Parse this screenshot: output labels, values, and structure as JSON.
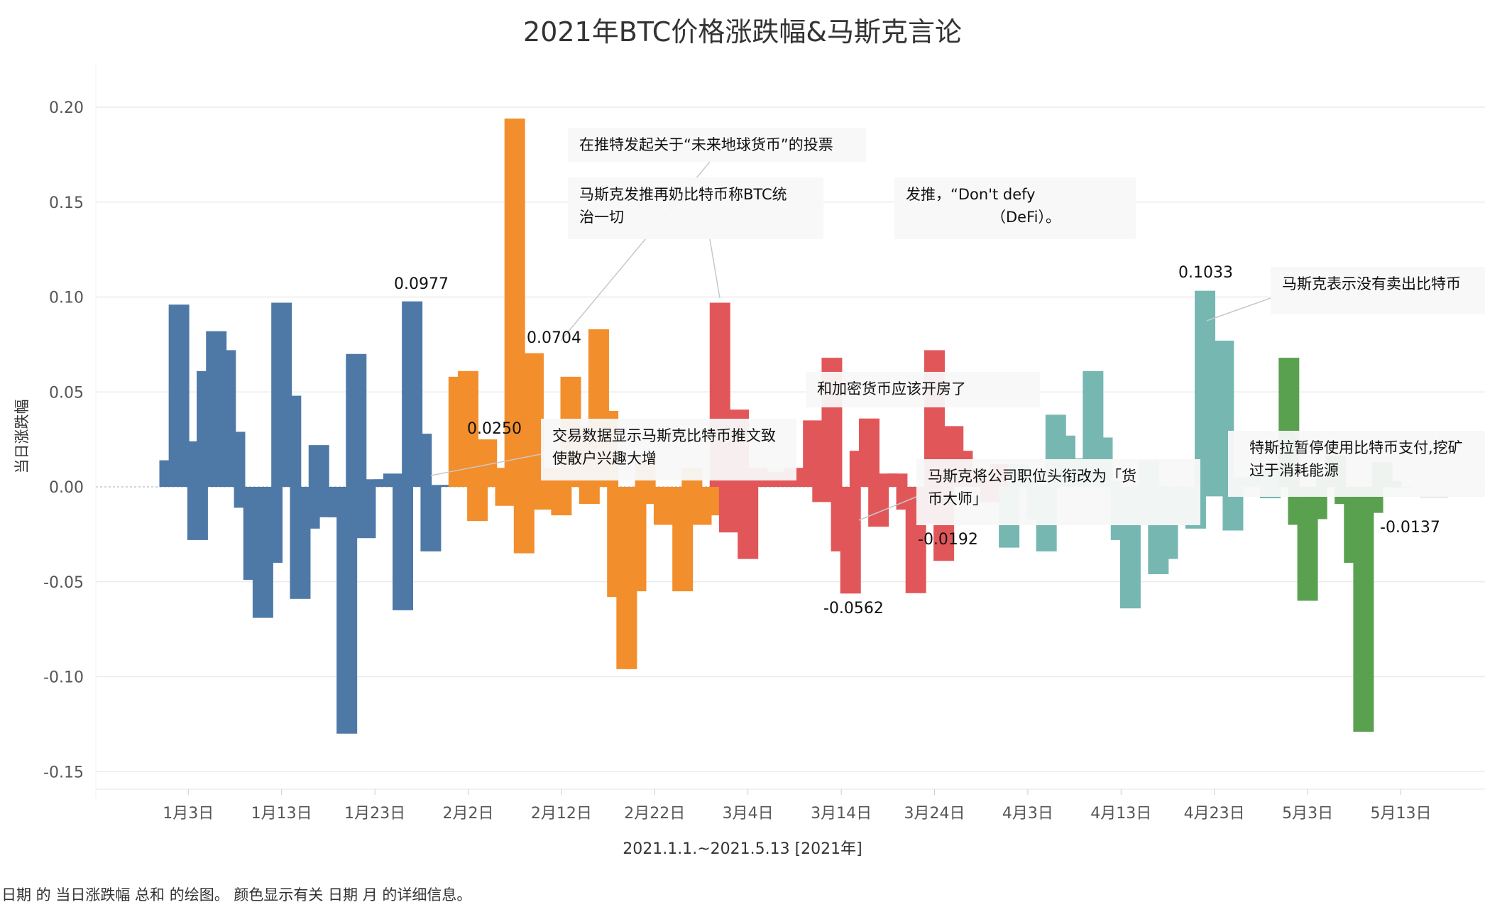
{
  "title": "2021年BTC价格涨跌幅&马斯克言论",
  "footer": "日期 的 当日涨跌幅 总和 的绘图。 颜色显示有关 日期 月 的详细信息。",
  "chart_data": {
    "type": "bar",
    "title": "2021年BTC价格涨跌幅&马斯克言论",
    "xlabel": "2021.1.1.~2021.5.13 [2021年]",
    "ylabel": "当日涨跌幅",
    "ylim": [
      -0.16,
      0.22
    ],
    "y_ticks": [
      "0.20",
      "0.15",
      "0.10",
      "0.05",
      "0.00",
      "-0.05",
      "-0.10",
      "-0.15"
    ],
    "y_tick_values": [
      0.2,
      0.15,
      0.1,
      0.05,
      0,
      -0.05,
      -0.1,
      -0.15
    ],
    "x_ticks": [
      "1月3日",
      "1月13日",
      "1月23日",
      "2月2日",
      "2月12日",
      "2月22日",
      "3月4日",
      "3月14日",
      "3月24日",
      "4月3日",
      "4月13日",
      "4月23日",
      "5月3日",
      "5月13日"
    ],
    "x_start": "2021-01-01",
    "x_end": "2021-05-13",
    "grid": true,
    "color_by": "月",
    "month_colors": {
      "1月": "#4e79a7",
      "2月": "#f28e2b",
      "3月": "#e15759",
      "4月": "#76b7b2",
      "5月": "#59a14f"
    },
    "months": [
      {
        "name": "1月",
        "values": [
          0.014,
          0.096,
          0.024,
          -0.028,
          0.061,
          0.082,
          0.072,
          0.029,
          -0.011,
          -0.049,
          -0.069,
          -0.04,
          0.097,
          0.048,
          -0.059,
          -0.022,
          0.022,
          -0.016,
          -0.016,
          -0.13,
          0.07,
          -0.027,
          0.004,
          0.004,
          0.007,
          -0.065,
          0.0977,
          0.028,
          -0.034,
          0.001,
          0.001
        ]
      },
      {
        "name": "2月",
        "values": [
          0.058,
          0.061,
          -0.018,
          0.025,
          0.01,
          -0.01,
          0.194,
          -0.035,
          0.0704,
          -0.012,
          0.01,
          -0.015,
          0.058,
          0.032,
          -0.009,
          0.083,
          0.04,
          -0.058,
          -0.096,
          -0.055,
          0.015,
          -0.009,
          -0.02,
          -0.01,
          -0.055,
          0.01,
          -0.02,
          -0.015
        ]
      },
      {
        "name": "3月",
        "values": [
          0.097,
          -0.024,
          0.0407,
          -0.038,
          0.01,
          0.005,
          0.008,
          0.006,
          0.01,
          0.004,
          0.035,
          -0.008,
          0.068,
          -0.034,
          -0.0562,
          0.019,
          0.036,
          -0.021,
          0.007,
          0.007,
          -0.012,
          -0.056,
          -0.0192,
          0.072,
          -0.039,
          0.032,
          0.019,
          0.01,
          0.005,
          -0.008,
          0.012
        ]
      },
      {
        "name": "4月",
        "values": [
          -0.032,
          0.012,
          0.005,
          -0.017,
          -0.034,
          0.038,
          0.027,
          0.015,
          0.005,
          0.061,
          0.026,
          0.003,
          -0.028,
          -0.064,
          -0.02,
          0.014,
          -0.046,
          -0.038,
          -0.02,
          -0.01,
          -0.022,
          0.1033,
          -0.005,
          0.077,
          -0.023,
          0.005,
          0.003,
          0.01,
          -0.006,
          0.01
        ]
      },
      {
        "name": "5月",
        "values": [
          0.068,
          -0.02,
          -0.06,
          -0.017,
          0.005,
          0.0165,
          -0.009,
          -0.04,
          -0.129,
          -0.0137,
          0.013,
          0.003,
          0.0
        ]
      }
    ],
    "value_labels": [
      "0.0977",
      "0.0704",
      "0.0250",
      "-0.0562",
      "-0.0192",
      "0.1033",
      "-0.0137"
    ],
    "annotations": [
      {
        "text": "交易数据显示马斯克比特币推文致使散户兴趣大增"
      },
      {
        "text": "在推特发起关于“未来地球货币”的投票"
      },
      {
        "text": "马斯克发推再奶比特币称BTC统",
        "text2": "治一切"
      },
      {
        "text": "和加密货币应该开房了"
      },
      {
        "text": "发推，“Don't defy",
        "text2": "（DeFi）。"
      },
      {
        "text": "马斯克将公司职位头衔改为「货",
        "text2": "币大师」"
      },
      {
        "text": "马斯克表示没有卖出比特币"
      },
      {
        "text": "特斯拉暂停使用比特币支付,挖矿",
        "text2": "过于消耗能源"
      }
    ]
  }
}
